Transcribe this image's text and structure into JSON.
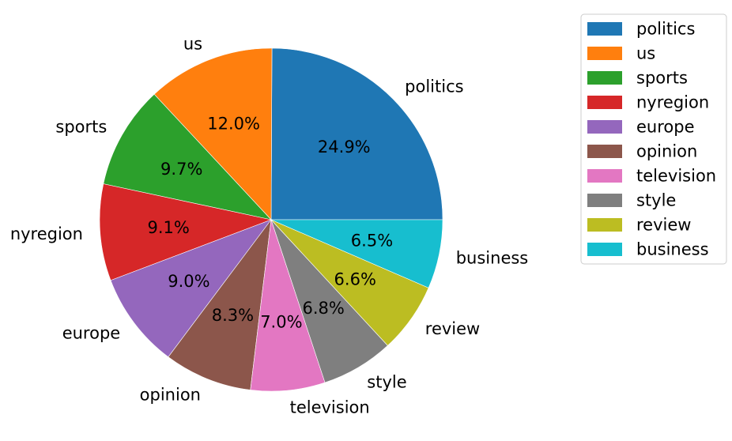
{
  "chart_data": {
    "type": "pie",
    "title": "",
    "categories": [
      "politics",
      "us",
      "sports",
      "nyregion",
      "europe",
      "opinion",
      "television",
      "style",
      "review",
      "business"
    ],
    "values": [
      24.9,
      12.0,
      9.7,
      9.1,
      9.0,
      8.3,
      7.0,
      6.8,
      6.6,
      6.5
    ],
    "value_labels": [
      "24.9%",
      "12.0%",
      "9.7%",
      "9.1%",
      "9.0%",
      "8.3%",
      "7.0%",
      "6.8%",
      "6.6%",
      "6.5%"
    ],
    "colors": [
      "#1f77b4",
      "#ff7f0e",
      "#2ca02c",
      "#d62728",
      "#9467bd",
      "#8c564b",
      "#e377c2",
      "#7f7f7f",
      "#bcbd22",
      "#17becf"
    ],
    "start_angle_deg": 0,
    "direction": "counterclockwise",
    "legend": {
      "position": "top-right",
      "entries": [
        "politics",
        "us",
        "sports",
        "nyregion",
        "europe",
        "opinion",
        "television",
        "style",
        "review",
        "business"
      ]
    }
  }
}
